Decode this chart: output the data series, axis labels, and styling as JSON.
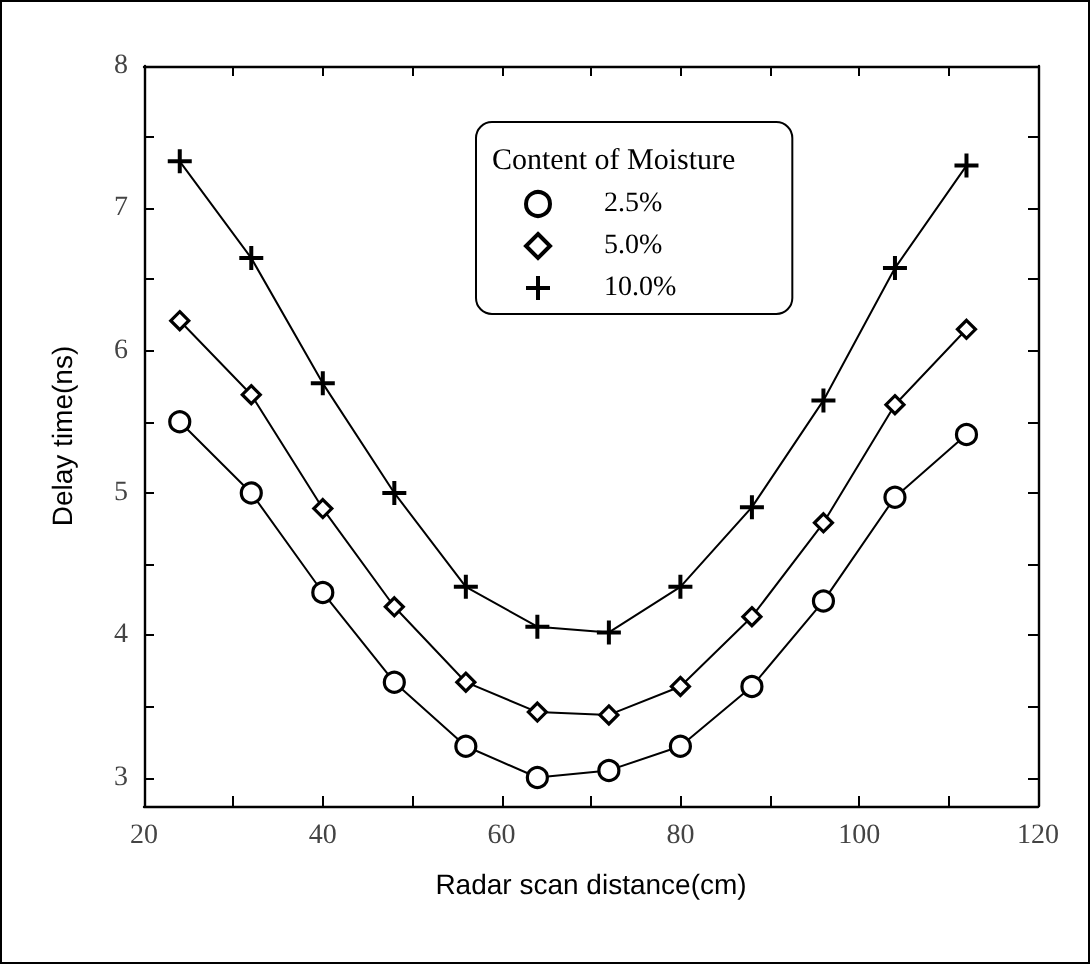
{
  "chart_data": {
    "type": "line",
    "xlabel": "Radar scan distance(cm)",
    "ylabel": "Delay time(ns)",
    "legend_title": "Content of Moisture",
    "x": [
      24,
      32,
      40,
      48,
      56,
      64,
      72,
      80,
      88,
      96,
      104,
      112
    ],
    "series": [
      {
        "name": "2.5%",
        "color": "#000000",
        "marker": "circle",
        "values": [
          5.5,
          5.0,
          4.3,
          3.67,
          3.22,
          3.0,
          3.05,
          3.22,
          3.64,
          4.24,
          4.97,
          5.41
        ]
      },
      {
        "name": "5.0%",
        "color": "#000000",
        "marker": "diamond",
        "values": [
          6.21,
          5.69,
          4.89,
          4.2,
          3.67,
          3.46,
          3.44,
          3.64,
          4.13,
          4.79,
          5.62,
          6.15
        ]
      },
      {
        "name": "10.0%",
        "color": "#000000",
        "marker": "cross",
        "values": [
          7.33,
          6.65,
          5.77,
          5.0,
          4.34,
          4.06,
          4.02,
          4.34,
          4.9,
          5.65,
          6.58,
          7.3
        ]
      }
    ],
    "xlim": [
      20,
      120
    ],
    "xticks": [
      20,
      {
        "value": 30,
        "label": null
      },
      40,
      {
        "value": 50,
        "label": null
      },
      60,
      {
        "value": 70,
        "label": null
      },
      80,
      {
        "value": 90,
        "label": null
      },
      100,
      {
        "value": 110,
        "label": null
      },
      120
    ],
    "ylim": [
      2.8,
      8
    ],
    "yticks": [
      3,
      {
        "value": 3.5,
        "label": null
      },
      4,
      {
        "value": 4.5,
        "label": null
      },
      5,
      {
        "value": 5.5,
        "label": null
      },
      6,
      {
        "value": 6.5,
        "label": null
      },
      7,
      {
        "value": 7.5,
        "label": null
      },
      8
    ],
    "grid": false,
    "legend": "top",
    "line_style": "solid"
  }
}
